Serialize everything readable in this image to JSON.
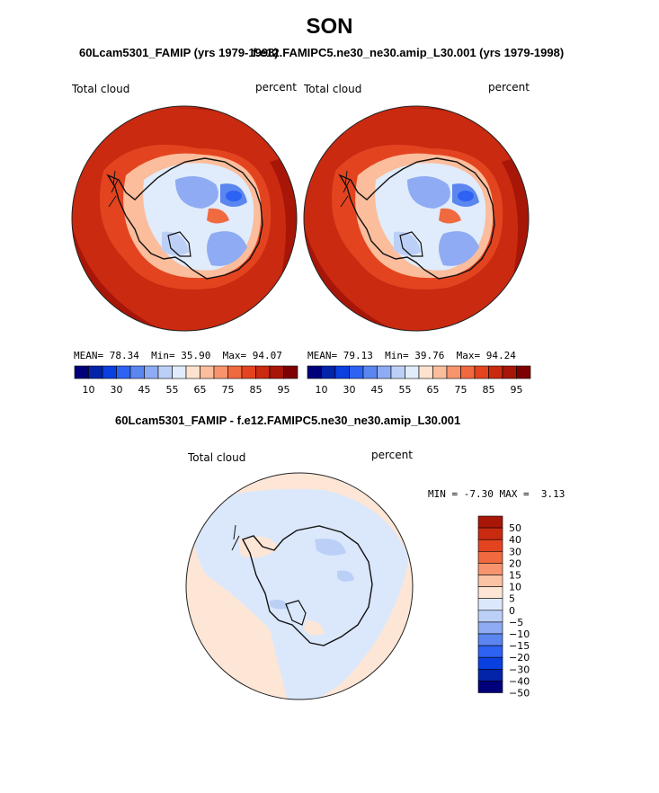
{
  "page": {
    "season": "SON"
  },
  "colors": {
    "abs_levels": [
      "#00007a",
      "#0324a8",
      "#0a3fe0",
      "#2d62f2",
      "#5b86f0",
      "#8eabf3",
      "#bcd0f7",
      "#e0ebfb",
      "#fde2cf",
      "#fbbd9c",
      "#f7946d",
      "#f0693f",
      "#e3441f",
      "#c92a10",
      "#a81608",
      "#7e0000"
    ],
    "diff_levels": [
      "#00007a",
      "#0324a8",
      "#0a3fe0",
      "#2d62f2",
      "#5b86f0",
      "#8eabf3",
      "#bcd0f7",
      "#dbe8fb",
      "#fde6d6",
      "#fbc3a4",
      "#f7946d",
      "#f0693f",
      "#e3441f",
      "#c92a10",
      "#a81608"
    ],
    "coast": "#111111"
  },
  "panels": [
    {
      "title": "60Lcam5301_FAMIP (yrs 1979-1998)",
      "variable": "Total cloud",
      "units": "percent",
      "stats": {
        "mean_label": "MEAN=",
        "mean": "78.34",
        "min_label": "Min=",
        "min": "35.90",
        "max_label": "Max=",
        "max": "94.07"
      },
      "colorbar_ticks": [
        "10",
        "30",
        "45",
        "55",
        "65",
        "75",
        "85",
        "95"
      ]
    },
    {
      "title": "f.e12.FAMIPC5.ne30_ne30.amip_L30.001 (yrs 1979-1998)",
      "variable": "Total cloud",
      "units": "percent",
      "stats": {
        "mean_label": "MEAN=",
        "mean": "79.13",
        "min_label": "Min=",
        "min": "39.76",
        "max_label": "Max=",
        "max": "94.24"
      },
      "colorbar_ticks": [
        "10",
        "30",
        "45",
        "55",
        "65",
        "75",
        "85",
        "95"
      ]
    }
  ],
  "difference": {
    "title": "60Lcam5301_FAMIP - f.e12.FAMIPC5.ne30_ne30.amip_L30.001",
    "variable": "Total cloud",
    "units": "percent",
    "min_label": "MIN =",
    "min": "-7.30",
    "max_label": "MAX =",
    "max": "3.13",
    "colorbar_labels": [
      "50",
      "40",
      "30",
      "20",
      "15",
      "10",
      "5",
      "0",
      "−5",
      "−10",
      "−15",
      "−20",
      "−30",
      "−40",
      "−50"
    ]
  },
  "chart_data": [
    {
      "type": "heatmap",
      "projection": "south polar stereographic",
      "title": "60Lcam5301_FAMIP (yrs 1979-1998)",
      "field": "Total cloud",
      "units": "percent",
      "mean": 78.34,
      "min": 35.9,
      "max": 94.07,
      "colorbar_ticks": [
        10,
        30,
        45,
        55,
        65,
        75,
        85,
        95
      ]
    },
    {
      "type": "heatmap",
      "projection": "south polar stereographic",
      "title": "f.e12.FAMIPC5.ne30_ne30.amip_L30.001 (yrs 1979-1998)",
      "field": "Total cloud",
      "units": "percent",
      "mean": 79.13,
      "min": 39.76,
      "max": 94.24,
      "colorbar_ticks": [
        10,
        30,
        45,
        55,
        65,
        75,
        85,
        95
      ]
    },
    {
      "type": "heatmap",
      "projection": "south polar stereographic",
      "title": "60Lcam5301_FAMIP - f.e12.FAMIPC5.ne30_ne30.amip_L30.001",
      "field": "Total cloud",
      "units": "percent",
      "min": -7.3,
      "max": 3.13,
      "colorbar_levels": [
        -50,
        -40,
        -30,
        -20,
        -15,
        -10,
        -5,
        0,
        5,
        10,
        15,
        20,
        30,
        40,
        50
      ]
    }
  ]
}
